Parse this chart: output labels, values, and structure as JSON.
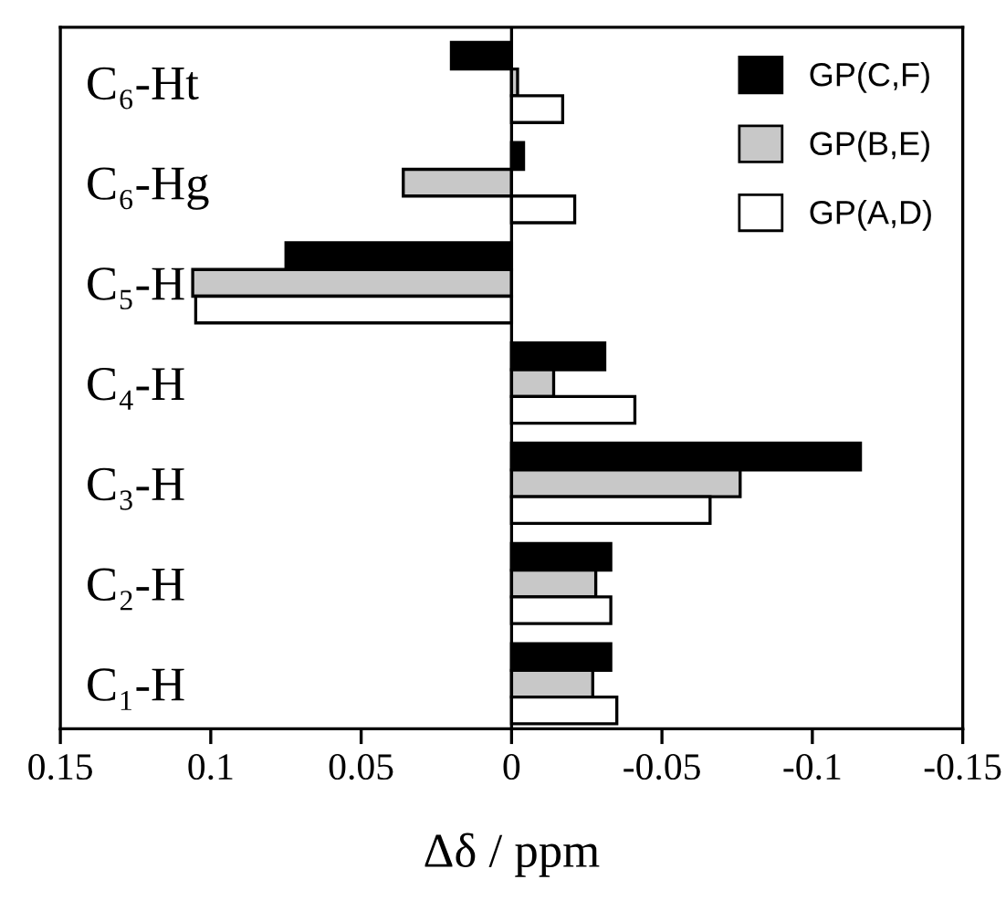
{
  "chart_data": {
    "type": "bar",
    "orientation": "horizontal",
    "xlabel": "Δδ / ppm",
    "categories": [
      "C₆-Ht",
      "C₆-Hg",
      "C₅-H",
      "C₄-H",
      "C₃-H",
      "C₂-H",
      "C₁-H"
    ],
    "series": [
      {
        "name": "GP(C,F)",
        "color": "#000000",
        "values": [
          0.02,
          -0.004,
          0.075,
          -0.031,
          -0.116,
          -0.033,
          -0.033
        ]
      },
      {
        "name": "GP(B,E)",
        "color": "#c8c8c8",
        "values": [
          -0.002,
          0.036,
          0.106,
          -0.014,
          -0.076,
          -0.028,
          -0.027
        ]
      },
      {
        "name": "GP(A,D)",
        "color": "#ffffff",
        "values": [
          -0.017,
          -0.021,
          0.105,
          -0.041,
          -0.066,
          -0.033,
          -0.035
        ]
      }
    ],
    "xlim": [
      0.15,
      -0.15
    ],
    "xticks": [
      0.15,
      0.1,
      0.05,
      0,
      -0.05,
      -0.1,
      -0.15
    ],
    "ref_lines": [
      {
        "axis": "x",
        "value": 0,
        "color": "#000000"
      }
    ],
    "legend": "top right",
    "grid": false
  }
}
